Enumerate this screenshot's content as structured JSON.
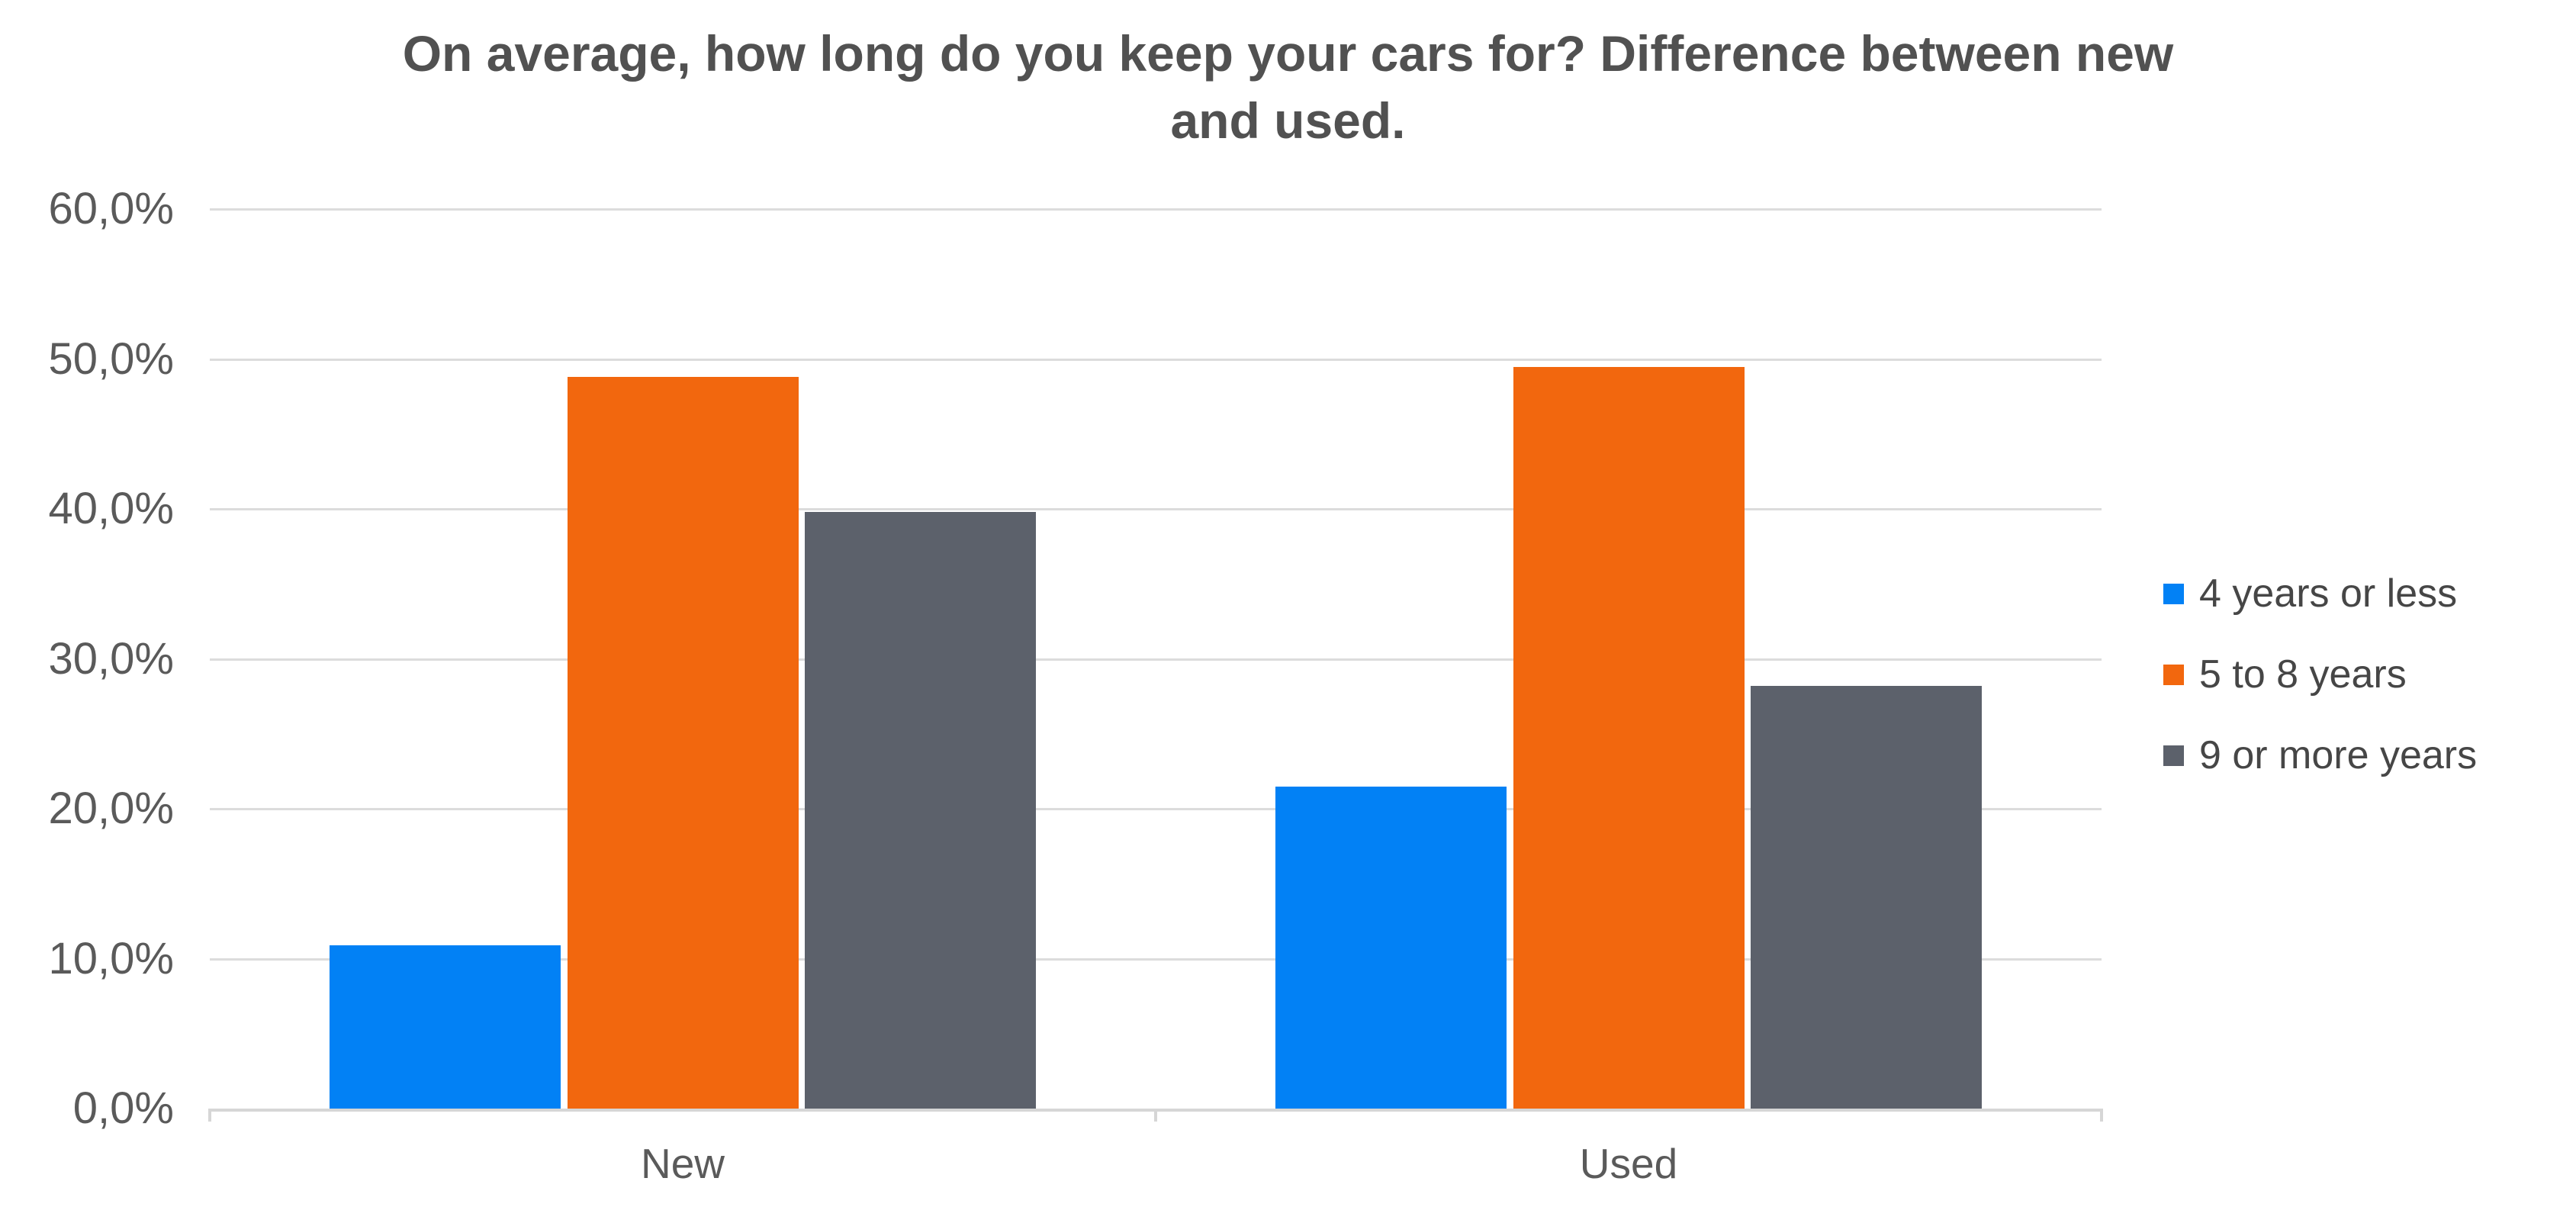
{
  "title_lines": [
    "On average, how long do you keep your cars for? Difference between new",
    "and used."
  ],
  "chart_data": {
    "type": "bar",
    "title": "On average, how long do you keep your cars for? Difference between new and used.",
    "categories": [
      "New",
      "Used"
    ],
    "series": [
      {
        "name": "4 years or less",
        "color": "#0281f5",
        "values": [
          10.9,
          21.5
        ]
      },
      {
        "name": "5 to 8 years",
        "color": "#f2670e",
        "values": [
          48.8,
          49.5
        ]
      },
      {
        "name": "9 or more years",
        "color": "#5c616b",
        "values": [
          39.8,
          28.2
        ]
      }
    ],
    "xlabel": "",
    "ylabel": "",
    "ylim": [
      0,
      60
    ],
    "ytick_values": [
      0,
      10,
      20,
      30,
      40,
      50,
      60
    ],
    "ytick_labels": [
      "0,0%",
      "10,0%",
      "20,0%",
      "30,0%",
      "40,0%",
      "50,0%",
      "60,0%"
    ],
    "decimal_separator": ",",
    "grid": true,
    "legend_position": "right"
  },
  "colors": {
    "grid": "#dcdcdc",
    "axis": "#d6d6d6",
    "title_text": "#515151",
    "axis_text": "#5a5a5a",
    "legend_text": "#464646",
    "background": "#ffffff"
  }
}
